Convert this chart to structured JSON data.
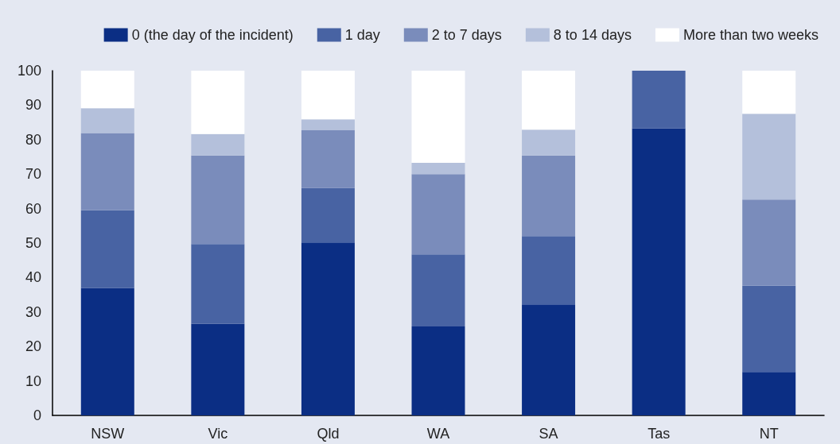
{
  "chart_data": {
    "type": "bar",
    "stacked": true,
    "categories": [
      "NSW",
      "Vic",
      "Qld",
      "WA",
      "SA",
      "Tas",
      "NT"
    ],
    "series": [
      {
        "name": "0 (the day of the incident)",
        "color": "#0b2e84",
        "values": [
          37.0,
          26.6,
          50.2,
          25.8,
          32.2,
          83.3,
          12.6
        ]
      },
      {
        "name": "1 day",
        "color": "#4863a3",
        "values": [
          22.5,
          23.1,
          15.8,
          20.9,
          19.8,
          16.7,
          25.0
        ]
      },
      {
        "name": "2 to 7 days",
        "color": "#7a8cbb",
        "values": [
          22.4,
          25.7,
          16.7,
          23.3,
          23.4,
          0,
          25.0
        ]
      },
      {
        "name": "8 to 14 days",
        "color": "#b4c0db",
        "values": [
          7.2,
          6.2,
          3.2,
          3.3,
          7.5,
          0,
          24.9
        ]
      },
      {
        "name": "More than two weeks",
        "color": "#ffffff",
        "values": [
          10.9,
          18.4,
          14.1,
          26.7,
          17.1,
          0,
          12.5
        ]
      }
    ],
    "ylim": [
      0,
      100
    ],
    "yticks": [
      0,
      10,
      20,
      30,
      40,
      50,
      60,
      70,
      80,
      90,
      100
    ],
    "grid": false,
    "legend": "top right"
  }
}
